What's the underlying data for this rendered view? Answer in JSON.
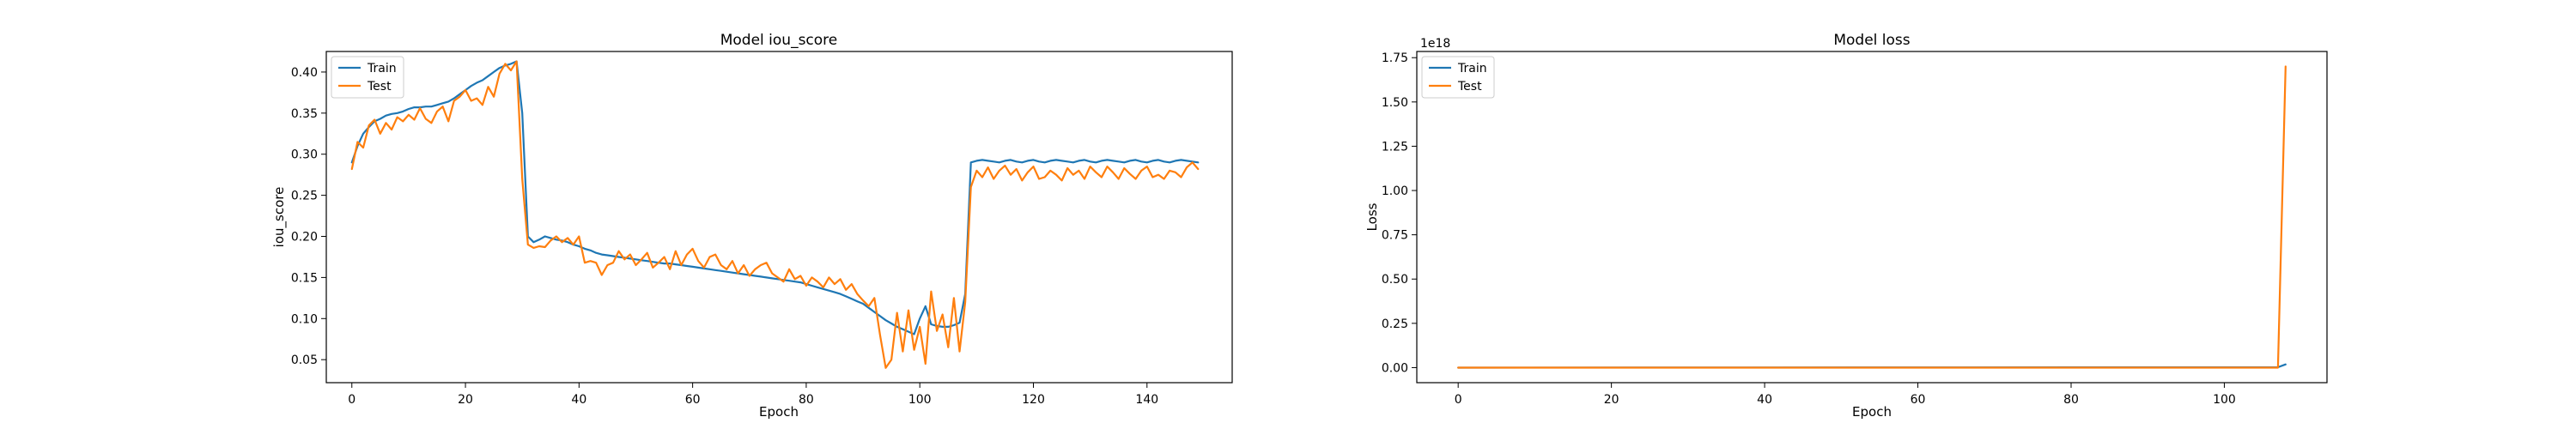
{
  "chart_data": [
    {
      "type": "line",
      "title": "Model iou_score",
      "xlabel": "Epoch",
      "ylabel": "iou_score",
      "xlim": [
        -4.5,
        155
      ],
      "ylim": [
        0.022,
        0.425
      ],
      "xticks": [
        0,
        20,
        40,
        60,
        80,
        100,
        120,
        140
      ],
      "xtick_labels": [
        "0",
        "20",
        "40",
        "60",
        "80",
        "100",
        "120",
        "140"
      ],
      "yticks": [
        0.05,
        0.1,
        0.15,
        0.2,
        0.25,
        0.3,
        0.35,
        0.4
      ],
      "ytick_labels": [
        "0.05",
        "0.10",
        "0.15",
        "0.20",
        "0.25",
        "0.30",
        "0.35",
        "0.40"
      ],
      "grid": false,
      "legend": "upper-left",
      "series": [
        {
          "name": "Train",
          "color": "#1f77b4",
          "x": [
            0,
            1,
            2,
            3,
            4,
            5,
            6,
            7,
            8,
            9,
            10,
            11,
            12,
            13,
            14,
            15,
            16,
            17,
            18,
            19,
            20,
            21,
            22,
            23,
            24,
            25,
            26,
            27,
            28,
            29,
            30,
            31,
            32,
            33,
            34,
            35,
            36,
            37,
            38,
            39,
            40,
            41,
            42,
            43,
            44,
            45,
            46,
            47,
            48,
            49,
            50,
            51,
            52,
            53,
            54,
            55,
            56,
            57,
            58,
            59,
            60,
            61,
            62,
            63,
            64,
            65,
            66,
            67,
            68,
            69,
            70,
            71,
            72,
            73,
            74,
            75,
            76,
            77,
            78,
            79,
            80,
            81,
            82,
            83,
            84,
            85,
            86,
            87,
            88,
            89,
            90,
            91,
            92,
            93,
            94,
            95,
            96,
            97,
            98,
            99,
            100,
            101,
            102,
            103,
            104,
            105,
            106,
            107,
            108,
            109,
            110,
            111,
            112,
            113,
            114,
            115,
            116,
            117,
            118,
            119,
            120,
            121,
            122,
            123,
            124,
            125,
            126,
            127,
            128,
            129,
            130,
            131,
            132,
            133,
            134,
            135,
            136,
            137,
            138,
            139,
            140,
            141,
            142,
            143,
            144,
            145,
            146,
            147,
            148,
            149
          ],
          "y": [
            0.29,
            0.31,
            0.325,
            0.333,
            0.34,
            0.343,
            0.347,
            0.349,
            0.35,
            0.352,
            0.355,
            0.357,
            0.357,
            0.358,
            0.358,
            0.36,
            0.362,
            0.364,
            0.368,
            0.373,
            0.378,
            0.383,
            0.387,
            0.39,
            0.395,
            0.4,
            0.405,
            0.408,
            0.41,
            0.413,
            0.35,
            0.2,
            0.193,
            0.196,
            0.2,
            0.198,
            0.196,
            0.195,
            0.193,
            0.19,
            0.188,
            0.185,
            0.183,
            0.18,
            0.178,
            0.177,
            0.176,
            0.175,
            0.174,
            0.173,
            0.172,
            0.171,
            0.17,
            0.169,
            0.168,
            0.167,
            0.167,
            0.166,
            0.165,
            0.164,
            0.163,
            0.162,
            0.161,
            0.16,
            0.159,
            0.158,
            0.157,
            0.156,
            0.155,
            0.154,
            0.153,
            0.152,
            0.151,
            0.15,
            0.149,
            0.148,
            0.147,
            0.146,
            0.145,
            0.144,
            0.142,
            0.14,
            0.138,
            0.136,
            0.134,
            0.132,
            0.13,
            0.127,
            0.124,
            0.121,
            0.118,
            0.113,
            0.108,
            0.103,
            0.098,
            0.094,
            0.09,
            0.087,
            0.084,
            0.081,
            0.1,
            0.115,
            0.093,
            0.091,
            0.09,
            0.09,
            0.092,
            0.095,
            0.13,
            0.29,
            0.292,
            0.293,
            0.292,
            0.291,
            0.29,
            0.292,
            0.293,
            0.291,
            0.29,
            0.292,
            0.293,
            0.291,
            0.29,
            0.292,
            0.293,
            0.292,
            0.291,
            0.29,
            0.292,
            0.293,
            0.291,
            0.29,
            0.292,
            0.293,
            0.292,
            0.291,
            0.29,
            0.292,
            0.293,
            0.291,
            0.29,
            0.292,
            0.293,
            0.291,
            0.29,
            0.292,
            0.293,
            0.292,
            0.291,
            0.29
          ]
        },
        {
          "name": "Test",
          "color": "#ff7f0e",
          "x": [
            0,
            1,
            2,
            3,
            4,
            5,
            6,
            7,
            8,
            9,
            10,
            11,
            12,
            13,
            14,
            15,
            16,
            17,
            18,
            19,
            20,
            21,
            22,
            23,
            24,
            25,
            26,
            27,
            28,
            29,
            30,
            31,
            32,
            33,
            34,
            35,
            36,
            37,
            38,
            39,
            40,
            41,
            42,
            43,
            44,
            45,
            46,
            47,
            48,
            49,
            50,
            51,
            52,
            53,
            54,
            55,
            56,
            57,
            58,
            59,
            60,
            61,
            62,
            63,
            64,
            65,
            66,
            67,
            68,
            69,
            70,
            71,
            72,
            73,
            74,
            75,
            76,
            77,
            78,
            79,
            80,
            81,
            82,
            83,
            84,
            85,
            86,
            87,
            88,
            89,
            90,
            91,
            92,
            93,
            94,
            95,
            96,
            97,
            98,
            99,
            100,
            101,
            102,
            103,
            104,
            105,
            106,
            107,
            108,
            109,
            110,
            111,
            112,
            113,
            114,
            115,
            116,
            117,
            118,
            119,
            120,
            121,
            122,
            123,
            124,
            125,
            126,
            127,
            128,
            129,
            130,
            131,
            132,
            133,
            134,
            135,
            136,
            137,
            138,
            139,
            140,
            141,
            142,
            143,
            144,
            145,
            146,
            147,
            148,
            149
          ],
          "y": [
            0.282,
            0.315,
            0.308,
            0.335,
            0.342,
            0.325,
            0.338,
            0.33,
            0.345,
            0.34,
            0.348,
            0.342,
            0.356,
            0.343,
            0.338,
            0.352,
            0.358,
            0.34,
            0.365,
            0.37,
            0.378,
            0.365,
            0.368,
            0.36,
            0.382,
            0.37,
            0.398,
            0.41,
            0.402,
            0.413,
            0.27,
            0.19,
            0.186,
            0.188,
            0.187,
            0.195,
            0.2,
            0.193,
            0.198,
            0.19,
            0.2,
            0.168,
            0.17,
            0.168,
            0.153,
            0.165,
            0.168,
            0.182,
            0.172,
            0.178,
            0.165,
            0.172,
            0.18,
            0.162,
            0.168,
            0.175,
            0.16,
            0.182,
            0.165,
            0.178,
            0.185,
            0.17,
            0.162,
            0.175,
            0.178,
            0.165,
            0.16,
            0.17,
            0.155,
            0.165,
            0.152,
            0.16,
            0.165,
            0.168,
            0.155,
            0.15,
            0.145,
            0.16,
            0.148,
            0.152,
            0.14,
            0.15,
            0.145,
            0.138,
            0.15,
            0.142,
            0.148,
            0.135,
            0.142,
            0.13,
            0.122,
            0.115,
            0.125,
            0.08,
            0.04,
            0.05,
            0.107,
            0.06,
            0.11,
            0.062,
            0.09,
            0.045,
            0.133,
            0.085,
            0.105,
            0.065,
            0.125,
            0.06,
            0.12,
            0.26,
            0.28,
            0.272,
            0.284,
            0.27,
            0.28,
            0.286,
            0.275,
            0.282,
            0.268,
            0.278,
            0.285,
            0.27,
            0.272,
            0.28,
            0.275,
            0.268,
            0.283,
            0.275,
            0.28,
            0.27,
            0.285,
            0.278,
            0.272,
            0.285,
            0.278,
            0.27,
            0.283,
            0.276,
            0.27,
            0.28,
            0.285,
            0.272,
            0.275,
            0.27,
            0.28,
            0.278,
            0.272,
            0.284,
            0.29,
            0.282
          ]
        }
      ]
    },
    {
      "type": "line",
      "title": "Model loss",
      "xlabel": "Epoch",
      "ylabel": "Loss",
      "offset_text": "1e18",
      "xlim": [
        -5.4,
        113.4
      ],
      "ylim": [
        -0.085,
        1.785
      ],
      "xticks": [
        0,
        20,
        40,
        60,
        80,
        100
      ],
      "xtick_labels": [
        "0",
        "20",
        "40",
        "60",
        "80",
        "100"
      ],
      "yticks": [
        0,
        0.25,
        0.5,
        0.75,
        1.0,
        1.25,
        1.5,
        1.75
      ],
      "ytick_labels": [
        "0.00",
        "0.25",
        "0.50",
        "0.75",
        "1.00",
        "1.25",
        "1.50",
        "1.75"
      ],
      "grid": false,
      "legend": "upper-left",
      "series": [
        {
          "name": "Train",
          "color": "#1f77b4",
          "x": [
            0,
            107,
            108
          ],
          "y": [
            0,
            0.002,
            0.018
          ]
        },
        {
          "name": "Test",
          "color": "#ff7f0e",
          "x": [
            0,
            107,
            108
          ],
          "y": [
            0,
            0,
            1.7
          ]
        }
      ]
    }
  ]
}
